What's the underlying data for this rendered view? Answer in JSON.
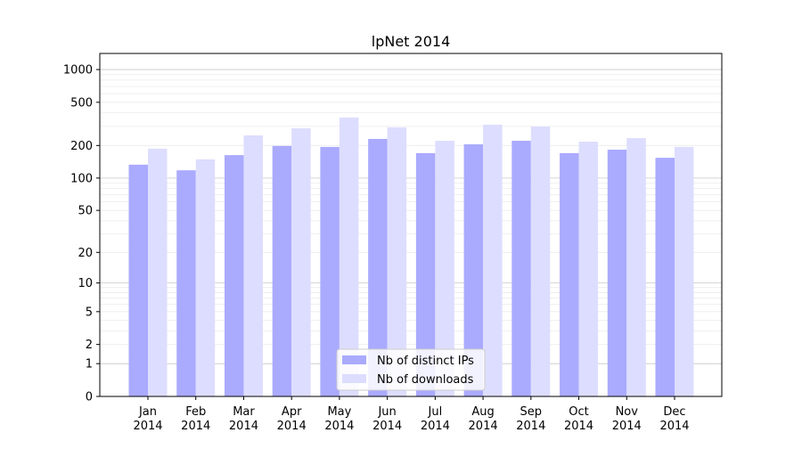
{
  "chart_data": {
    "type": "bar",
    "title": "lpNet 2014",
    "xlabel": "",
    "ylabel": "",
    "yscale": "symlog (log10(1+y))",
    "ylim": [
      0,
      1300
    ],
    "yticks": [
      0,
      1,
      2,
      5,
      10,
      20,
      50,
      100,
      200,
      500,
      1000
    ],
    "grid": true,
    "legend_placement": "lower-center",
    "categories": [
      "Jan\n2014",
      "Feb\n2014",
      "Mar\n2014",
      "Apr\n2014",
      "May\n2014",
      "Jun\n2014",
      "Jul\n2014",
      "Aug\n2014",
      "Sep\n2014",
      "Oct\n2014",
      "Nov\n2014",
      "Dec\n2014"
    ],
    "series": [
      {
        "name": "Nb of distinct IPs",
        "color": "#aaaaff",
        "values": [
          133,
          118,
          163,
          198,
          194,
          230,
          170,
          205,
          221,
          170,
          183,
          154
        ]
      },
      {
        "name": "Nb of downloads",
        "color": "#ddddff",
        "values": [
          187,
          149,
          248,
          288,
          362,
          294,
          221,
          311,
          299,
          217,
          234,
          194
        ]
      }
    ]
  }
}
